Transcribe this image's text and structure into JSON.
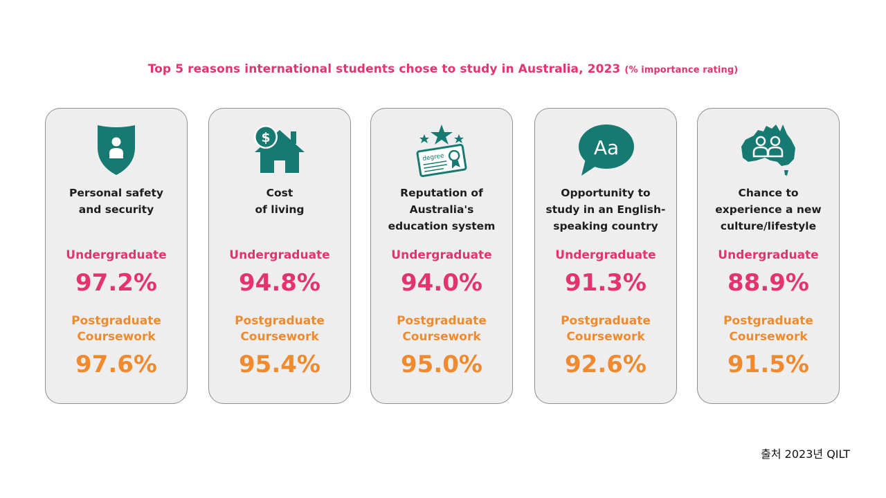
{
  "title": {
    "main": "Top 5 reasons international students chose to study in Australia, 2023",
    "sub": "(% importance rating)"
  },
  "colors": {
    "accent_pink": "#e5336e",
    "accent_orange": "#f08a2d",
    "icon_teal": "#167a72",
    "card_bg": "#efeeef"
  },
  "chart_data": {
    "type": "table",
    "title": "Top 5 reasons international students chose to study in Australia, 2023 (% importance rating)",
    "categories": [
      "Personal safety and security",
      "Cost of living",
      "Reputation of Australia's education system",
      "Opportunity to study in an English-speaking country",
      "Chance to experience a new culture/lifestyle"
    ],
    "series": [
      {
        "name": "Undergraduate",
        "values": [
          97.2,
          94.8,
          94.0,
          91.3,
          88.9
        ]
      },
      {
        "name": "Postgraduate Coursework",
        "values": [
          97.6,
          95.4,
          95.0,
          92.6,
          91.5
        ]
      }
    ]
  },
  "cards": [
    {
      "icon": "shield-person-icon",
      "reason": "Personal safety\nand security",
      "ug_label": "Undergraduate",
      "ug_value": "97.2%",
      "pg_label": "Postgraduate\nCoursework",
      "pg_value": "97.6%"
    },
    {
      "icon": "house-dollar-icon",
      "reason": "Cost\nof living",
      "ug_label": "Undergraduate",
      "ug_value": "94.8%",
      "pg_label": "Postgraduate\nCoursework",
      "pg_value": "95.4%"
    },
    {
      "icon": "degree-certificate-icon",
      "icon_text": "degree",
      "reason": "Reputation of\nAustralia's\neducation system",
      "ug_label": "Undergraduate",
      "ug_value": "94.0%",
      "pg_label": "Postgraduate\nCoursework",
      "pg_value": "95.0%"
    },
    {
      "icon": "speech-bubble-icon",
      "icon_text": "Aa",
      "reason": "Opportunity to\nstudy in an English-\nspeaking country",
      "ug_label": "Undergraduate",
      "ug_value": "91.3%",
      "pg_label": "Postgraduate\nCoursework",
      "pg_value": "92.6%"
    },
    {
      "icon": "australia-people-icon",
      "reason": "Chance to\nexperience a new\nculture/lifestyle",
      "ug_label": "Undergraduate",
      "ug_value": "88.9%",
      "pg_label": "Postgraduate\nCoursework",
      "pg_value": "91.5%"
    }
  ],
  "source": "출처 2023년 QILT"
}
